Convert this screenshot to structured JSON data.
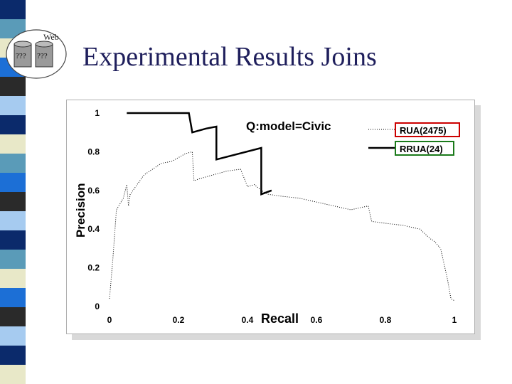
{
  "slide": {
    "title": "Experimental Results Joins"
  },
  "logo": {
    "label": "Web",
    "db_left": "???",
    "db_right": "???"
  },
  "stripe_colors": [
    "#0b2a6b",
    "#5a9bb8",
    "#e8e8c8",
    "#1c6fd6",
    "#2a2a2a",
    "#a6cbf0",
    "#0b2a6b",
    "#e8e8c8",
    "#5a9bb8",
    "#1c6fd6",
    "#2a2a2a",
    "#a6cbf0",
    "#0b2a6b",
    "#5a9bb8",
    "#e8e8c8",
    "#1c6fd6",
    "#2a2a2a",
    "#a6cbf0",
    "#0b2a6b",
    "#e8e8c8"
  ],
  "chart_data": {
    "type": "line",
    "title": "Q:model=Civic",
    "xlabel": "Recall",
    "ylabel": "Precision",
    "xlim": [
      0,
      1
    ],
    "ylim": [
      0,
      1
    ],
    "x_ticks": [
      "0",
      "0.2",
      "0.4",
      "0.6",
      "0.8",
      "1"
    ],
    "y_ticks": [
      "0",
      "0.2",
      "0.4",
      "0.6",
      "0.8",
      "1"
    ],
    "series": [
      {
        "name": "RUA(2475)",
        "color": "#000000",
        "style": "dotted",
        "points": [
          [
            0,
            0.04
          ],
          [
            0.01,
            0.25
          ],
          [
            0.02,
            0.5
          ],
          [
            0.04,
            0.56
          ],
          [
            0.05,
            0.63
          ],
          [
            0.055,
            0.52
          ],
          [
            0.06,
            0.58
          ],
          [
            0.1,
            0.68
          ],
          [
            0.15,
            0.74
          ],
          [
            0.18,
            0.75
          ],
          [
            0.22,
            0.79
          ],
          [
            0.24,
            0.8
          ],
          [
            0.245,
            0.65
          ],
          [
            0.26,
            0.66
          ],
          [
            0.3,
            0.68
          ],
          [
            0.34,
            0.7
          ],
          [
            0.38,
            0.71
          ],
          [
            0.4,
            0.62
          ],
          [
            0.42,
            0.63
          ],
          [
            0.44,
            0.6
          ],
          [
            0.46,
            0.58
          ],
          [
            0.5,
            0.57
          ],
          [
            0.55,
            0.56
          ],
          [
            0.6,
            0.54
          ],
          [
            0.65,
            0.52
          ],
          [
            0.7,
            0.5
          ],
          [
            0.75,
            0.52
          ],
          [
            0.76,
            0.44
          ],
          [
            0.8,
            0.43
          ],
          [
            0.85,
            0.42
          ],
          [
            0.9,
            0.4
          ],
          [
            0.93,
            0.35
          ],
          [
            0.94,
            0.34
          ],
          [
            0.96,
            0.3
          ],
          [
            0.98,
            0.14
          ],
          [
            0.99,
            0.04
          ],
          [
            1.0,
            0.03
          ]
        ]
      },
      {
        "name": "RRUA(24)",
        "color": "#000000",
        "style": "solid",
        "points": [
          [
            0.05,
            1.0
          ],
          [
            0.23,
            1.0
          ],
          [
            0.24,
            0.9
          ],
          [
            0.28,
            0.92
          ],
          [
            0.31,
            0.93
          ],
          [
            0.31,
            0.76
          ],
          [
            0.44,
            0.82
          ],
          [
            0.44,
            0.58
          ],
          [
            0.47,
            0.6
          ]
        ]
      }
    ],
    "legend": {
      "position": "top-right"
    }
  }
}
